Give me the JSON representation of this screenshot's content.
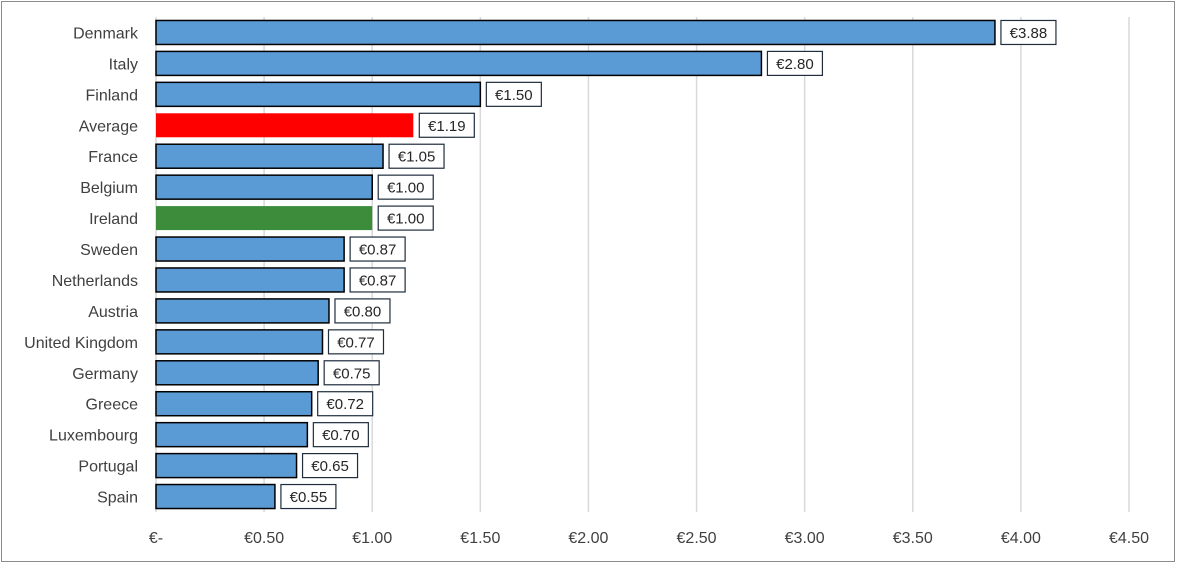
{
  "chart_data": {
    "type": "bar",
    "orientation": "horizontal",
    "categories": [
      "Denmark",
      "Italy",
      "Finland",
      "Average",
      "France",
      "Belgium",
      "Ireland",
      "Sweden",
      "Netherlands",
      "Austria",
      "United Kingdom",
      "Germany",
      "Greece",
      "Luxembourg",
      "Portugal",
      "Spain"
    ],
    "values": [
      3.88,
      2.8,
      1.5,
      1.19,
      1.05,
      1.0,
      1.0,
      0.87,
      0.87,
      0.8,
      0.77,
      0.75,
      0.72,
      0.7,
      0.65,
      0.55
    ],
    "data_labels": [
      "€3.88",
      "€2.80",
      "€1.50",
      "€1.19",
      "€1.05",
      "€1.00",
      "€1.00",
      "€0.87",
      "€0.87",
      "€0.80",
      "€0.77",
      "€0.75",
      "€0.72",
      "€0.70",
      "€0.65",
      "€0.55"
    ],
    "xlim": [
      0,
      4.5
    ],
    "x_ticks": [
      0,
      0.5,
      1.0,
      1.5,
      2.0,
      2.5,
      3.0,
      3.5,
      4.0,
      4.5
    ],
    "x_tick_labels": [
      "€-",
      "€0.50",
      "€1.00",
      "€1.50",
      "€2.00",
      "€2.50",
      "€3.00",
      "€3.50",
      "€4.00",
      "€4.50"
    ],
    "grid": "vertical",
    "legend": "none",
    "colors": {
      "default": "#5b9bd5",
      "Average": "#ff0000",
      "Ireland": "#3c8c3c",
      "bar_outline": "#000000",
      "grid": "#d9d9d9"
    },
    "title": "",
    "xlabel": "",
    "ylabel": ""
  }
}
